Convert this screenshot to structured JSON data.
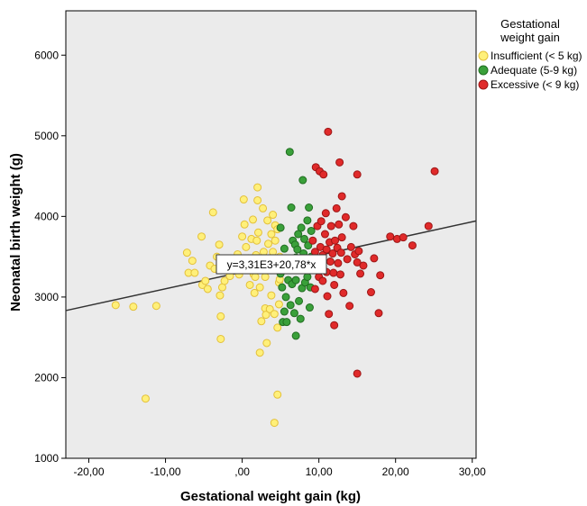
{
  "chart_data": {
    "type": "scatter",
    "xlabel": "Gestational weight gain (kg)",
    "ylabel": "Neonatal birth weight (g)",
    "xlim": [
      -23,
      30.5
    ],
    "ylim": [
      1000,
      6550
    ],
    "xticks": [
      -20,
      -10,
      0,
      10,
      20,
      30
    ],
    "xtick_labels": [
      "-20,00",
      "-10,00",
      ",00",
      "10,00",
      "20,00",
      "30,00"
    ],
    "yticks": [
      1000,
      2000,
      3000,
      4000,
      5000,
      6000
    ],
    "ytick_labels": [
      "1000",
      "2000",
      "3000",
      "4000",
      "5000",
      "6000"
    ],
    "grid": false,
    "background": "#ebebeb",
    "legend": {
      "title_lines": [
        "Gestational",
        "weight gain"
      ],
      "position": "right"
    },
    "series": [
      {
        "name": "Insufficient (< 5 kg)",
        "color": "#fff07a",
        "edge": "#e3c03a",
        "points": [
          [
            -16.5,
            2900
          ],
          [
            -14.2,
            2880
          ],
          [
            -11.2,
            2890
          ],
          [
            -12.6,
            1740
          ],
          [
            -7.2,
            3550
          ],
          [
            -7.0,
            3300
          ],
          [
            -6.5,
            3450
          ],
          [
            -6.2,
            3300
          ],
          [
            -5.3,
            3750
          ],
          [
            -5.2,
            3150
          ],
          [
            -4.8,
            3200
          ],
          [
            -4.5,
            3100
          ],
          [
            -4.2,
            3390
          ],
          [
            -3.8,
            4050
          ],
          [
            -3.6,
            3350
          ],
          [
            -3.3,
            3500
          ],
          [
            -3.0,
            3650
          ],
          [
            -2.9,
            3020
          ],
          [
            -2.8,
            2760
          ],
          [
            -2.8,
            2480
          ],
          [
            -2.6,
            3120
          ],
          [
            -2.3,
            3200
          ],
          [
            -2.0,
            3330
          ],
          [
            -1.6,
            3260
          ],
          [
            -1.2,
            3390
          ],
          [
            -0.6,
            3530
          ],
          [
            -0.4,
            3280
          ],
          [
            -0.3,
            3440
          ],
          [
            0.0,
            3750
          ],
          [
            0.2,
            4210
          ],
          [
            0.3,
            3900
          ],
          [
            0.5,
            3620
          ],
          [
            0.6,
            3350
          ],
          [
            0.8,
            3480
          ],
          [
            1.0,
            3150
          ],
          [
            1.2,
            3720
          ],
          [
            1.4,
            3960
          ],
          [
            1.5,
            3280
          ],
          [
            1.6,
            3050
          ],
          [
            1.7,
            3250
          ],
          [
            1.8,
            3520
          ],
          [
            1.9,
            3700
          ],
          [
            2.0,
            4360
          ],
          [
            2.0,
            4200
          ],
          [
            2.1,
            3800
          ],
          [
            2.2,
            3380
          ],
          [
            2.3,
            3120
          ],
          [
            2.3,
            2310
          ],
          [
            2.5,
            3450
          ],
          [
            2.5,
            2700
          ],
          [
            2.7,
            4100
          ],
          [
            2.8,
            3560
          ],
          [
            3.0,
            3250
          ],
          [
            3.0,
            2860
          ],
          [
            3.1,
            2780
          ],
          [
            3.2,
            2430
          ],
          [
            3.3,
            3950
          ],
          [
            3.4,
            3660
          ],
          [
            3.5,
            3480
          ],
          [
            3.6,
            2850
          ],
          [
            3.8,
            3780
          ],
          [
            3.8,
            3020
          ],
          [
            4.0,
            4020
          ],
          [
            4.0,
            3560
          ],
          [
            4.1,
            3340
          ],
          [
            4.2,
            2790
          ],
          [
            4.3,
            3890
          ],
          [
            4.3,
            3700
          ],
          [
            4.5,
            3430
          ],
          [
            4.6,
            3840
          ],
          [
            4.6,
            2620
          ],
          [
            4.8,
            3180
          ],
          [
            4.8,
            2910
          ],
          [
            4.9,
            3500
          ],
          [
            4.9,
            3220
          ],
          [
            4.2,
            1440
          ],
          [
            4.6,
            1790
          ]
        ]
      },
      {
        "name": "Adequate (5-9 kg)",
        "color": "#3aa03a",
        "edge": "#216d21",
        "points": [
          [
            5.0,
            3860
          ],
          [
            5.0,
            3290
          ],
          [
            5.2,
            3120
          ],
          [
            5.3,
            2690
          ],
          [
            5.5,
            3600
          ],
          [
            5.5,
            2820
          ],
          [
            5.7,
            3000
          ],
          [
            5.8,
            2690
          ],
          [
            5.9,
            3470
          ],
          [
            6.0,
            3210
          ],
          [
            6.2,
            4800
          ],
          [
            6.2,
            3340
          ],
          [
            6.3,
            2900
          ],
          [
            6.4,
            4110
          ],
          [
            6.5,
            3160
          ],
          [
            6.6,
            3700
          ],
          [
            6.6,
            3390
          ],
          [
            6.8,
            2800
          ],
          [
            6.9,
            3650
          ],
          [
            7.0,
            3490
          ],
          [
            7.0,
            3210
          ],
          [
            7.0,
            2520
          ],
          [
            7.2,
            3590
          ],
          [
            7.3,
            3780
          ],
          [
            7.4,
            2950
          ],
          [
            7.5,
            3360
          ],
          [
            7.6,
            2730
          ],
          [
            7.7,
            3860
          ],
          [
            7.8,
            3110
          ],
          [
            7.9,
            4450
          ],
          [
            8.0,
            3540
          ],
          [
            8.1,
            3720
          ],
          [
            8.2,
            3180
          ],
          [
            8.3,
            3420
          ],
          [
            8.5,
            3950
          ],
          [
            8.5,
            3250
          ],
          [
            8.6,
            3640
          ],
          [
            8.7,
            4110
          ],
          [
            8.8,
            2870
          ],
          [
            8.9,
            3120
          ],
          [
            9.0,
            3500
          ],
          [
            9.0,
            3820
          ]
        ]
      },
      {
        "name": "Excessive (< 9 kg)",
        "color": "#e02a2a",
        "edge": "#9c1616",
        "points": [
          [
            9.2,
            3700
          ],
          [
            9.3,
            3350
          ],
          [
            9.5,
            3560
          ],
          [
            9.5,
            3100
          ],
          [
            9.6,
            4610
          ],
          [
            9.8,
            3880
          ],
          [
            10.0,
            3250
          ],
          [
            10.0,
            3480
          ],
          [
            10.1,
            4560
          ],
          [
            10.2,
            3620
          ],
          [
            10.3,
            3940
          ],
          [
            10.5,
            3200
          ],
          [
            10.5,
            3520
          ],
          [
            10.6,
            4520
          ],
          [
            10.8,
            3780
          ],
          [
            10.9,
            4040
          ],
          [
            11.0,
            3310
          ],
          [
            11.0,
            3590
          ],
          [
            11.1,
            3010
          ],
          [
            11.2,
            5050
          ],
          [
            11.3,
            2790
          ],
          [
            11.4,
            3680
          ],
          [
            11.5,
            3440
          ],
          [
            11.6,
            3880
          ],
          [
            11.8,
            3540
          ],
          [
            11.9,
            3300
          ],
          [
            12.0,
            2650
          ],
          [
            12.0,
            3150
          ],
          [
            12.1,
            3700
          ],
          [
            12.3,
            4100
          ],
          [
            12.4,
            3610
          ],
          [
            12.5,
            3420
          ],
          [
            12.6,
            3900
          ],
          [
            12.7,
            4670
          ],
          [
            12.8,
            3280
          ],
          [
            12.9,
            3550
          ],
          [
            13.0,
            4250
          ],
          [
            13.0,
            3740
          ],
          [
            13.2,
            3050
          ],
          [
            13.5,
            3990
          ],
          [
            13.7,
            3470
          ],
          [
            14.0,
            2890
          ],
          [
            14.2,
            3620
          ],
          [
            14.5,
            3880
          ],
          [
            14.7,
            3530
          ],
          [
            15.0,
            4520
          ],
          [
            15.0,
            3430
          ],
          [
            15.0,
            2050
          ],
          [
            15.2,
            3570
          ],
          [
            15.4,
            3290
          ],
          [
            15.8,
            3390
          ],
          [
            16.8,
            3060
          ],
          [
            17.2,
            3480
          ],
          [
            17.8,
            2800
          ],
          [
            18.0,
            3270
          ],
          [
            19.3,
            3750
          ],
          [
            20.2,
            3720
          ],
          [
            21.0,
            3740
          ],
          [
            22.2,
            3640
          ],
          [
            24.3,
            3880
          ],
          [
            25.1,
            4560
          ]
        ]
      }
    ],
    "regression": {
      "label": "y=3,31E3+20,78*x",
      "intercept": 3310,
      "slope": 20.78,
      "color": "#333333"
    }
  }
}
